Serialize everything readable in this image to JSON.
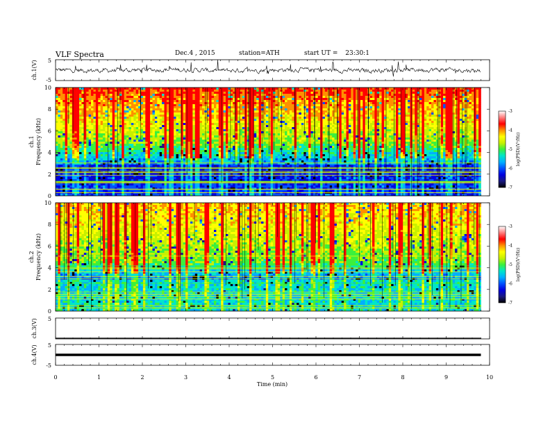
{
  "header": {
    "title": "VLF Spectra",
    "date": "Dec.4 , 2015",
    "station": "station=ATH",
    "start_label": "start UT =",
    "start_time": "23:30:1"
  },
  "colors": {
    "colormap": [
      "#000000",
      "#1a1a80",
      "#0000e0",
      "#0050ff",
      "#00b0ff",
      "#00e6c8",
      "#3cf03c",
      "#c8f000",
      "#ffff00",
      "#ff9000",
      "#ff0000",
      "#ff8080",
      "#ffffff"
    ]
  },
  "chart_data": [
    {
      "type": "line",
      "id": "ch1-waveform",
      "ylabel": "ch.1(V)",
      "ylim": [
        -5,
        5
      ],
      "yticks": [
        "5",
        "-5"
      ],
      "description_level": "noisy waveform around 0 V with occasional spikes"
    },
    {
      "type": "heatmap",
      "id": "ch1-spectrogram",
      "ylabel": "Frequency (kHz)",
      "channel_label": "ch.1",
      "ylim": [
        0,
        10
      ],
      "yticks": [
        "0",
        "2",
        "4",
        "6",
        "8",
        "10"
      ],
      "colorbar": {
        "label": "log(PSD)(V²/Hz)",
        "ticks": [
          "-3",
          "-4",
          "-5",
          "-6",
          "-7"
        ],
        "range": [
          -7,
          -3
        ]
      }
    },
    {
      "type": "heatmap",
      "id": "ch2-spectrogram",
      "ylabel": "Frequency (kHz)",
      "channel_label": "ch.2",
      "ylim": [
        0,
        10
      ],
      "yticks": [
        "0",
        "2",
        "4",
        "6",
        "8",
        "10"
      ],
      "colorbar": {
        "label": "log(PSD)(V²/Hz)",
        "ticks": [
          "-3",
          "-4",
          "-5",
          "-6",
          "-7"
        ],
        "range": [
          -7,
          -3
        ]
      }
    },
    {
      "type": "line",
      "id": "ch3-waveform",
      "ylabel": "ch.3(V)",
      "ylim": [
        -5,
        5
      ],
      "yticks": [
        "5"
      ],
      "values_level": -5
    },
    {
      "type": "line",
      "id": "ch4-waveform",
      "ylabel": "ch.4(V)",
      "ylim": [
        -5,
        5
      ],
      "yticks": [
        "5",
        "-5"
      ],
      "values_level": 0
    }
  ],
  "xaxis": {
    "label": "Time (min)",
    "range": [
      0,
      10
    ],
    "ticks": [
      "0",
      "1",
      "2",
      "3",
      "4",
      "5",
      "6",
      "7",
      "8",
      "9",
      "10"
    ],
    "data_end": 9.8
  }
}
